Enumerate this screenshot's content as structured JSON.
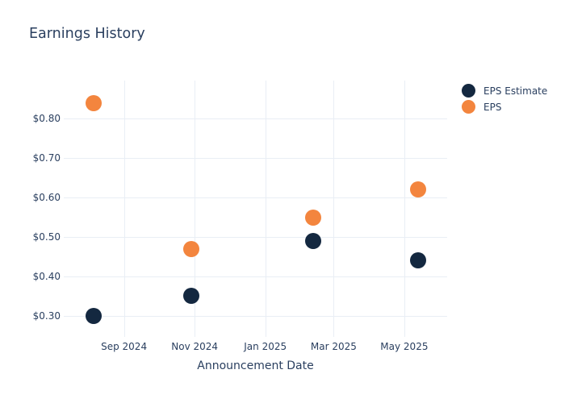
{
  "title": "Earnings History",
  "colors": {
    "eps_estimate": "#142840",
    "eps": "#f3853e",
    "text": "#2a3f5f",
    "grid": "#e9eef5",
    "background": "#ffffff"
  },
  "legend": {
    "items": [
      {
        "label": "EPS Estimate",
        "color": "#142840"
      },
      {
        "label": "EPS",
        "color": "#f3853e"
      }
    ]
  },
  "chart_data": {
    "type": "scatter",
    "title": "Earnings History",
    "xlabel": "Announcement Date",
    "ylabel": "",
    "x": [
      "2024-08-06",
      "2024-10-29",
      "2025-02-11",
      "2025-05-13"
    ],
    "series": [
      {
        "name": "EPS Estimate",
        "color": "#142840",
        "values": [
          0.3,
          0.35,
          0.49,
          0.44
        ]
      },
      {
        "name": "EPS",
        "color": "#f3853e",
        "values": [
          0.84,
          0.47,
          0.55,
          0.62
        ]
      }
    ],
    "x_ticks": [
      {
        "date": "2024-09-01",
        "label": "Sep 2024"
      },
      {
        "date": "2024-11-01",
        "label": "Nov 2024"
      },
      {
        "date": "2025-01-01",
        "label": "Jan 2025"
      },
      {
        "date": "2025-03-01",
        "label": "Mar 2025"
      },
      {
        "date": "2025-05-01",
        "label": "May 2025"
      }
    ],
    "y_ticks": [
      {
        "value": 0.3,
        "label": "$0.30"
      },
      {
        "value": 0.4,
        "label": "$0.40"
      },
      {
        "value": 0.5,
        "label": "$0.50"
      },
      {
        "value": 0.6,
        "label": "$0.60"
      },
      {
        "value": 0.7,
        "label": "$0.70"
      },
      {
        "value": 0.8,
        "label": "$0.80"
      }
    ],
    "x_range": [
      "2024-07-11",
      "2025-06-07"
    ],
    "y_range": [
      0.246,
      0.897
    ],
    "grid": true,
    "legend_position": "top-right-outside",
    "marker_size_px": 20
  }
}
